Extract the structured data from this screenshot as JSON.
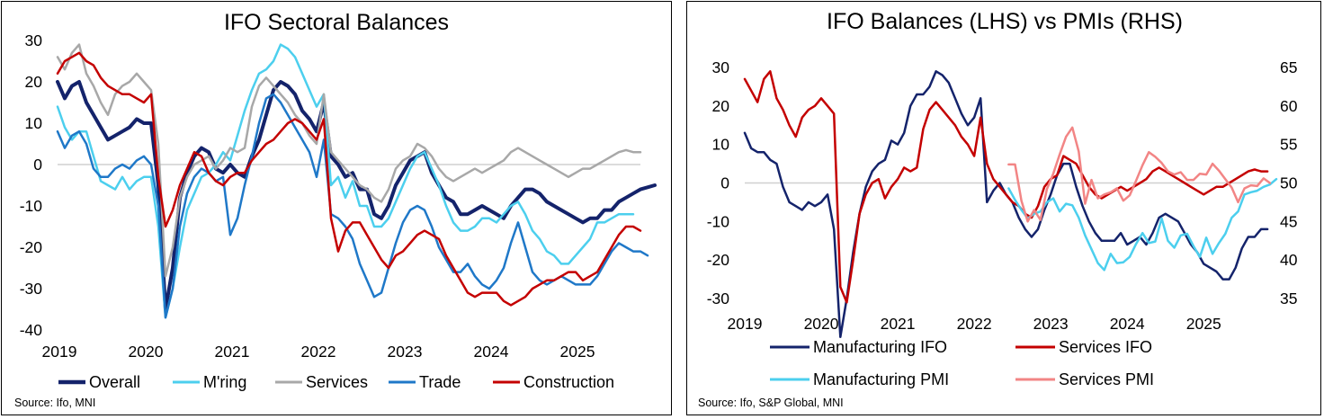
{
  "colors": {
    "overall": "#14236b",
    "mring": "#4ccfee",
    "services": "#a8a8a8",
    "trade": "#1f78c8",
    "construction": "#c40000",
    "services_pmi": "#f28585",
    "manufacturing_ifo": "#14236b",
    "services_ifo": "#c40000",
    "manufacturing_pmi": "#4ccfee"
  },
  "chart_data": [
    {
      "type": "line",
      "title": "IFO Sectoral Balances",
      "source": "Source: Ifo, MNI",
      "xlabel": "",
      "ylabel": "",
      "xlim": [
        2019.0,
        2025.75
      ],
      "ylim": [
        -40,
        30
      ],
      "yticks": [
        30,
        20,
        10,
        0,
        -10,
        -20,
        -30,
        -40
      ],
      "xticks": [
        "2019",
        "2020",
        "2021",
        "2022",
        "2023",
        "2024",
        "2025"
      ],
      "legend": "bottom",
      "series": [
        {
          "name": "Overall",
          "key": "overall",
          "width": 4,
          "start": 2019.0,
          "values": [
            20,
            16,
            19,
            20,
            15,
            12,
            9,
            6,
            7,
            8,
            9,
            11,
            10,
            10,
            -5,
            -35,
            -25,
            -8,
            -2,
            2,
            4,
            3,
            -1,
            -2,
            0,
            -2,
            -3,
            2,
            6,
            12,
            18,
            20,
            19,
            17,
            13,
            11,
            8,
            15,
            2,
            0,
            -3,
            -2,
            -6,
            -6,
            -12,
            -13,
            -10,
            -5,
            -2,
            1,
            2,
            3,
            -2,
            -5,
            -8,
            -9,
            -12,
            -12,
            -11,
            -10,
            -11,
            -12,
            -13,
            -10,
            -8,
            -6,
            -6,
            -7,
            -9,
            -10,
            -11,
            -12,
            -13,
            -14,
            -13,
            -13,
            -11,
            -11,
            -9,
            -8,
            -7,
            -6,
            -5.5,
            -5
          ]
        },
        {
          "name": "M'ring",
          "key": "mring",
          "width": 2.5,
          "start": 2019.0,
          "values": [
            14,
            9,
            6,
            8,
            8,
            2,
            -4,
            -5,
            -6,
            -3,
            -6,
            -4,
            -3,
            -3,
            -15,
            -37,
            -30,
            -20,
            -11,
            -7,
            -3,
            -2,
            0,
            3,
            1,
            7,
            13,
            18,
            22,
            23,
            25,
            29,
            28,
            26,
            22,
            18,
            14,
            17,
            -5,
            -3,
            -8,
            -4,
            -10,
            -10,
            -15,
            -15,
            -13,
            -9,
            -5,
            -1,
            2,
            3,
            -1,
            -5,
            -10,
            -14,
            -16,
            -16,
            -15,
            -13,
            -13,
            -14,
            -12,
            -10,
            -9,
            -12,
            -16,
            -18,
            -21,
            -22,
            -24,
            -24,
            -22,
            -20,
            -18,
            -14,
            -14,
            -13,
            -12,
            -12,
            -12
          ]
        },
        {
          "name": "Services",
          "key": "services",
          "width": 2.5,
          "start": 2019.0,
          "values": [
            26,
            23,
            27,
            29,
            22,
            19,
            15,
            12,
            17,
            19,
            20,
            22,
            20,
            18,
            5,
            -27,
            -20,
            -8,
            -3,
            0,
            1,
            2,
            -1,
            1,
            4,
            3,
            4,
            14,
            19,
            21,
            19,
            17,
            15,
            12,
            10,
            7,
            5,
            17,
            3,
            1,
            -1,
            -3,
            -5,
            -6,
            -8,
            -9,
            -6,
            -1,
            1,
            2,
            5,
            4,
            2,
            -1,
            -3,
            -4,
            -3,
            -2,
            -1,
            -2,
            -1,
            0,
            1,
            3,
            4,
            3,
            2,
            1,
            0,
            -1,
            -2,
            -3,
            -2,
            -1,
            -1,
            0,
            1,
            2,
            3,
            3.5,
            3,
            3
          ]
        },
        {
          "name": "Trade",
          "key": "trade",
          "width": 2.5,
          "start": 2019.0,
          "values": [
            8,
            4,
            7,
            8,
            5,
            -1,
            -3,
            -3,
            -1,
            0,
            -1,
            1,
            2,
            0,
            -10,
            -37,
            -30,
            -15,
            -7,
            -3,
            -1,
            -2,
            -4,
            -3,
            -17,
            -13,
            -5,
            2,
            10,
            16,
            17,
            15,
            12,
            9,
            6,
            3,
            -3,
            6,
            -12,
            -13,
            -15,
            -18,
            -24,
            -28,
            -32,
            -31,
            -25,
            -19,
            -14,
            -11,
            -10,
            -11,
            -15,
            -20,
            -23,
            -26,
            -26,
            -24,
            -27,
            -29,
            -30,
            -28,
            -25,
            -19,
            -14,
            -20,
            -26,
            -28,
            -29,
            -28,
            -27,
            -28,
            -29,
            -29,
            -29,
            -27,
            -24,
            -21,
            -19,
            -20,
            -21,
            -21,
            -22
          ]
        },
        {
          "name": "Construction",
          "key": "construction",
          "width": 2.5,
          "start": 2019.0,
          "values": [
            22,
            25,
            26,
            27,
            25,
            24,
            21,
            19,
            18,
            17,
            17,
            16,
            15,
            17,
            -3,
            -15,
            -11,
            -5,
            -1,
            3,
            2,
            -2,
            -4,
            -5,
            -3,
            -2,
            -2,
            1,
            3,
            5,
            6,
            8,
            10,
            11,
            10,
            8,
            6,
            11,
            -13,
            -21,
            -16,
            -14,
            -14,
            -17,
            -20,
            -23,
            -25,
            -22,
            -21,
            -19,
            -17,
            -16,
            -17,
            -18,
            -22,
            -25,
            -28,
            -31,
            -32,
            -31,
            -31,
            -31,
            -33,
            -34,
            -33,
            -32,
            -30,
            -29,
            -28,
            -28,
            -27,
            -26,
            -26,
            -28,
            -27,
            -26,
            -23,
            -20,
            -17,
            -15,
            -15,
            -16
          ]
        }
      ]
    },
    {
      "type": "line",
      "title": "IFO Balances (LHS) vs PMIs (RHS)",
      "source": "Source: Ifo, S&P Global, MNI",
      "xlabel": "",
      "ylabel": "",
      "xlim": [
        2019.0,
        2025.75
      ],
      "ylim": [
        -30,
        30
      ],
      "y2lim": [
        35,
        65
      ],
      "yticks": [
        30,
        20,
        10,
        0,
        -10,
        -20,
        -30
      ],
      "y2ticks": [
        65,
        60,
        55,
        50,
        45,
        40,
        35
      ],
      "xticks": [
        "2019",
        "2020",
        "2021",
        "2022",
        "2023",
        "2024",
        "2025"
      ],
      "legend": "bottom",
      "series": [
        {
          "name": "Manufacturing IFO",
          "key": "manufacturing_ifo",
          "axis": "left",
          "width": 2.5,
          "start": 2019.0,
          "values": [
            13,
            9,
            8,
            8,
            6,
            5,
            -1,
            -5,
            -6,
            -7,
            -5,
            -6,
            -5,
            -3,
            -12,
            -40,
            -30,
            -18,
            -8,
            -1,
            3,
            5,
            6,
            11,
            10,
            13,
            20,
            23,
            23,
            25,
            29,
            28,
            26,
            22,
            18,
            15,
            17,
            22,
            -5,
            -2,
            0,
            -3,
            -5,
            -9,
            -12,
            -14,
            -12,
            -7,
            -3,
            2,
            5,
            5,
            -1,
            -6,
            -10,
            -13,
            -15,
            -15,
            -15,
            -13,
            -16,
            -15,
            -14,
            -16,
            -13,
            -9,
            -8,
            -9,
            -10,
            -13,
            -16,
            -18,
            -21,
            -22,
            -23,
            -25,
            -25,
            -22,
            -17,
            -14,
            -14,
            -12,
            -12
          ]
        },
        {
          "name": "Services IFO",
          "key": "services_ifo",
          "axis": "left",
          "width": 2.5,
          "start": 2019.0,
          "values": [
            27,
            24,
            21,
            27,
            29,
            22,
            19,
            15,
            12,
            17,
            19,
            20,
            22,
            20,
            18,
            -27,
            -31,
            -20,
            -8,
            -3,
            0,
            1,
            -4,
            -1,
            1,
            4,
            3,
            4,
            14,
            19,
            21,
            19,
            17,
            15,
            12,
            10,
            7,
            17,
            5,
            1,
            -1,
            -3,
            -5,
            -6,
            -8,
            -9,
            -6,
            -1,
            1,
            2,
            7,
            6,
            5,
            2,
            -1,
            -3,
            -4,
            -3,
            -2,
            -1,
            -2,
            -1,
            0,
            1,
            3,
            4,
            3,
            2,
            1,
            0,
            -1,
            -2,
            -3,
            -2,
            -1,
            -1,
            0,
            1,
            2,
            3,
            3.5,
            3,
            3
          ]
        },
        {
          "name": "Manufacturing PMI",
          "key": "manufacturing_pmi",
          "axis": "right",
          "width": 2.5,
          "start": 2022.45,
          "values": [
            49.3,
            47.8,
            46.5,
            45.4,
            46.0,
            46.3,
            47.5,
            48.0,
            46.3,
            47.3,
            47.1,
            45.5,
            43.2,
            41.4,
            39.6,
            38.7,
            40.8,
            39.6,
            39.7,
            40.4,
            42.1,
            43.5,
            42.2,
            42.4,
            45.4,
            42.5,
            41.6,
            43.2,
            43.4,
            41.8,
            40.4,
            42.9,
            40.8,
            42.2,
            43.4,
            45.5,
            46.3,
            48.5,
            48.8,
            49.0,
            49.5,
            49.8,
            50.5
          ]
        },
        {
          "name": "Services PMI",
          "key": "services_pmi",
          "axis": "right",
          "width": 2.5,
          "start": 2022.45,
          "values": [
            52.4,
            52.4,
            47.7,
            45.0,
            46.5,
            45.2,
            49.2,
            51.2,
            53.7,
            56.0,
            57.2,
            54.1,
            47.3,
            50.4,
            48.0,
            48.5,
            48.8,
            49.3,
            47.7,
            48.4,
            50.3,
            52.3,
            54.0,
            53.4,
            52.6,
            51.5,
            51.1,
            51.4,
            50.4,
            50.4,
            51.2,
            51.1,
            52.5,
            51.6,
            50.5,
            49.4,
            47.5,
            49.3,
            49.7,
            49.6,
            50.6,
            50.0
          ]
        }
      ]
    }
  ]
}
